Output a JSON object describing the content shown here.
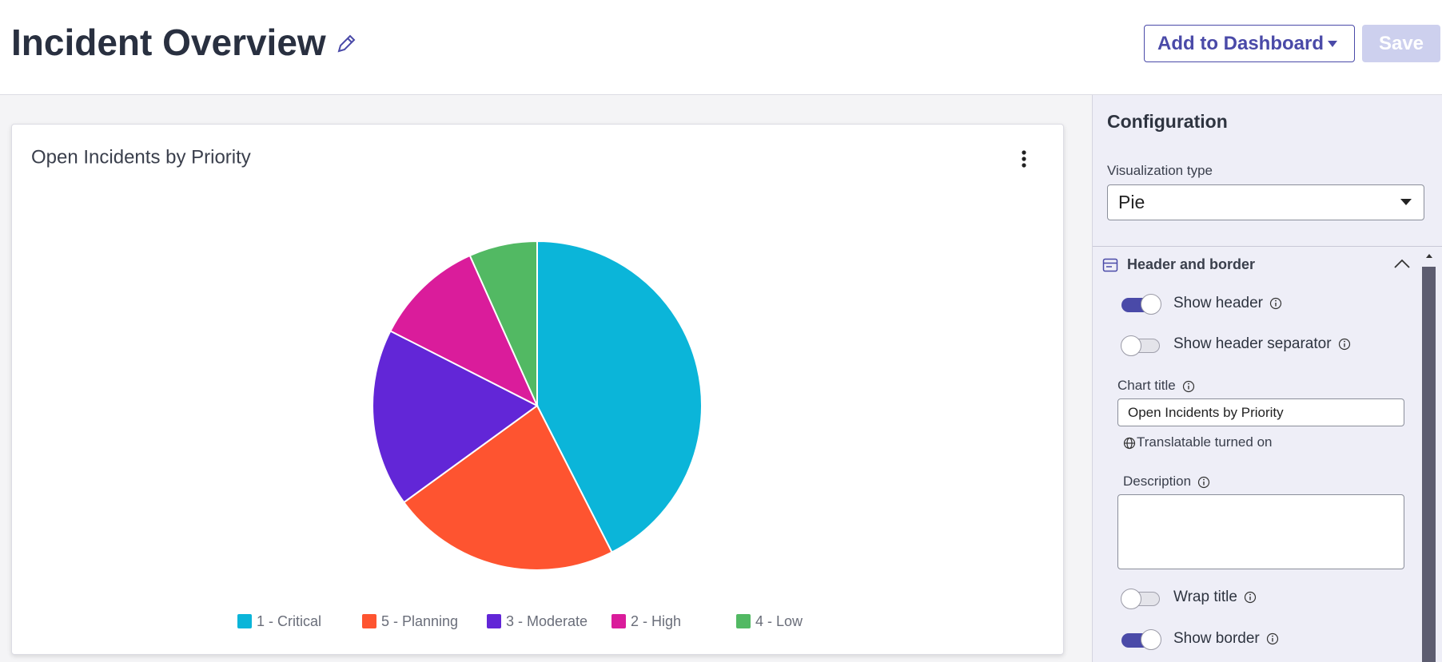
{
  "header": {
    "title": "Incident Overview",
    "add_button": "Add to Dashboard",
    "save_button": "Save"
  },
  "chart_data": {
    "type": "pie",
    "title": "Open Incidents by Priority",
    "categories": [
      "1 - Critical",
      "5 - Planning",
      "3 - Moderate",
      "2 - High",
      "4 - Low"
    ],
    "values": [
      42.5,
      22.5,
      17.5,
      10.8,
      6.7
    ],
    "colors": [
      "#0bb5d9",
      "#fe5430",
      "#6226d7",
      "#da1c9b",
      "#52b963"
    ]
  },
  "config": {
    "title": "Configuration",
    "visualization_label": "Visualization type",
    "visualization_value": "Pie",
    "section_title": "Header and border",
    "show_header": "Show header",
    "show_header_separator": "Show header separator",
    "chart_title_label": "Chart title",
    "chart_title_value": "Open Incidents by Priority",
    "translatable": "Translatable turned on",
    "description_label": "Description",
    "wrap_title": "Wrap title",
    "show_border": "Show border"
  }
}
